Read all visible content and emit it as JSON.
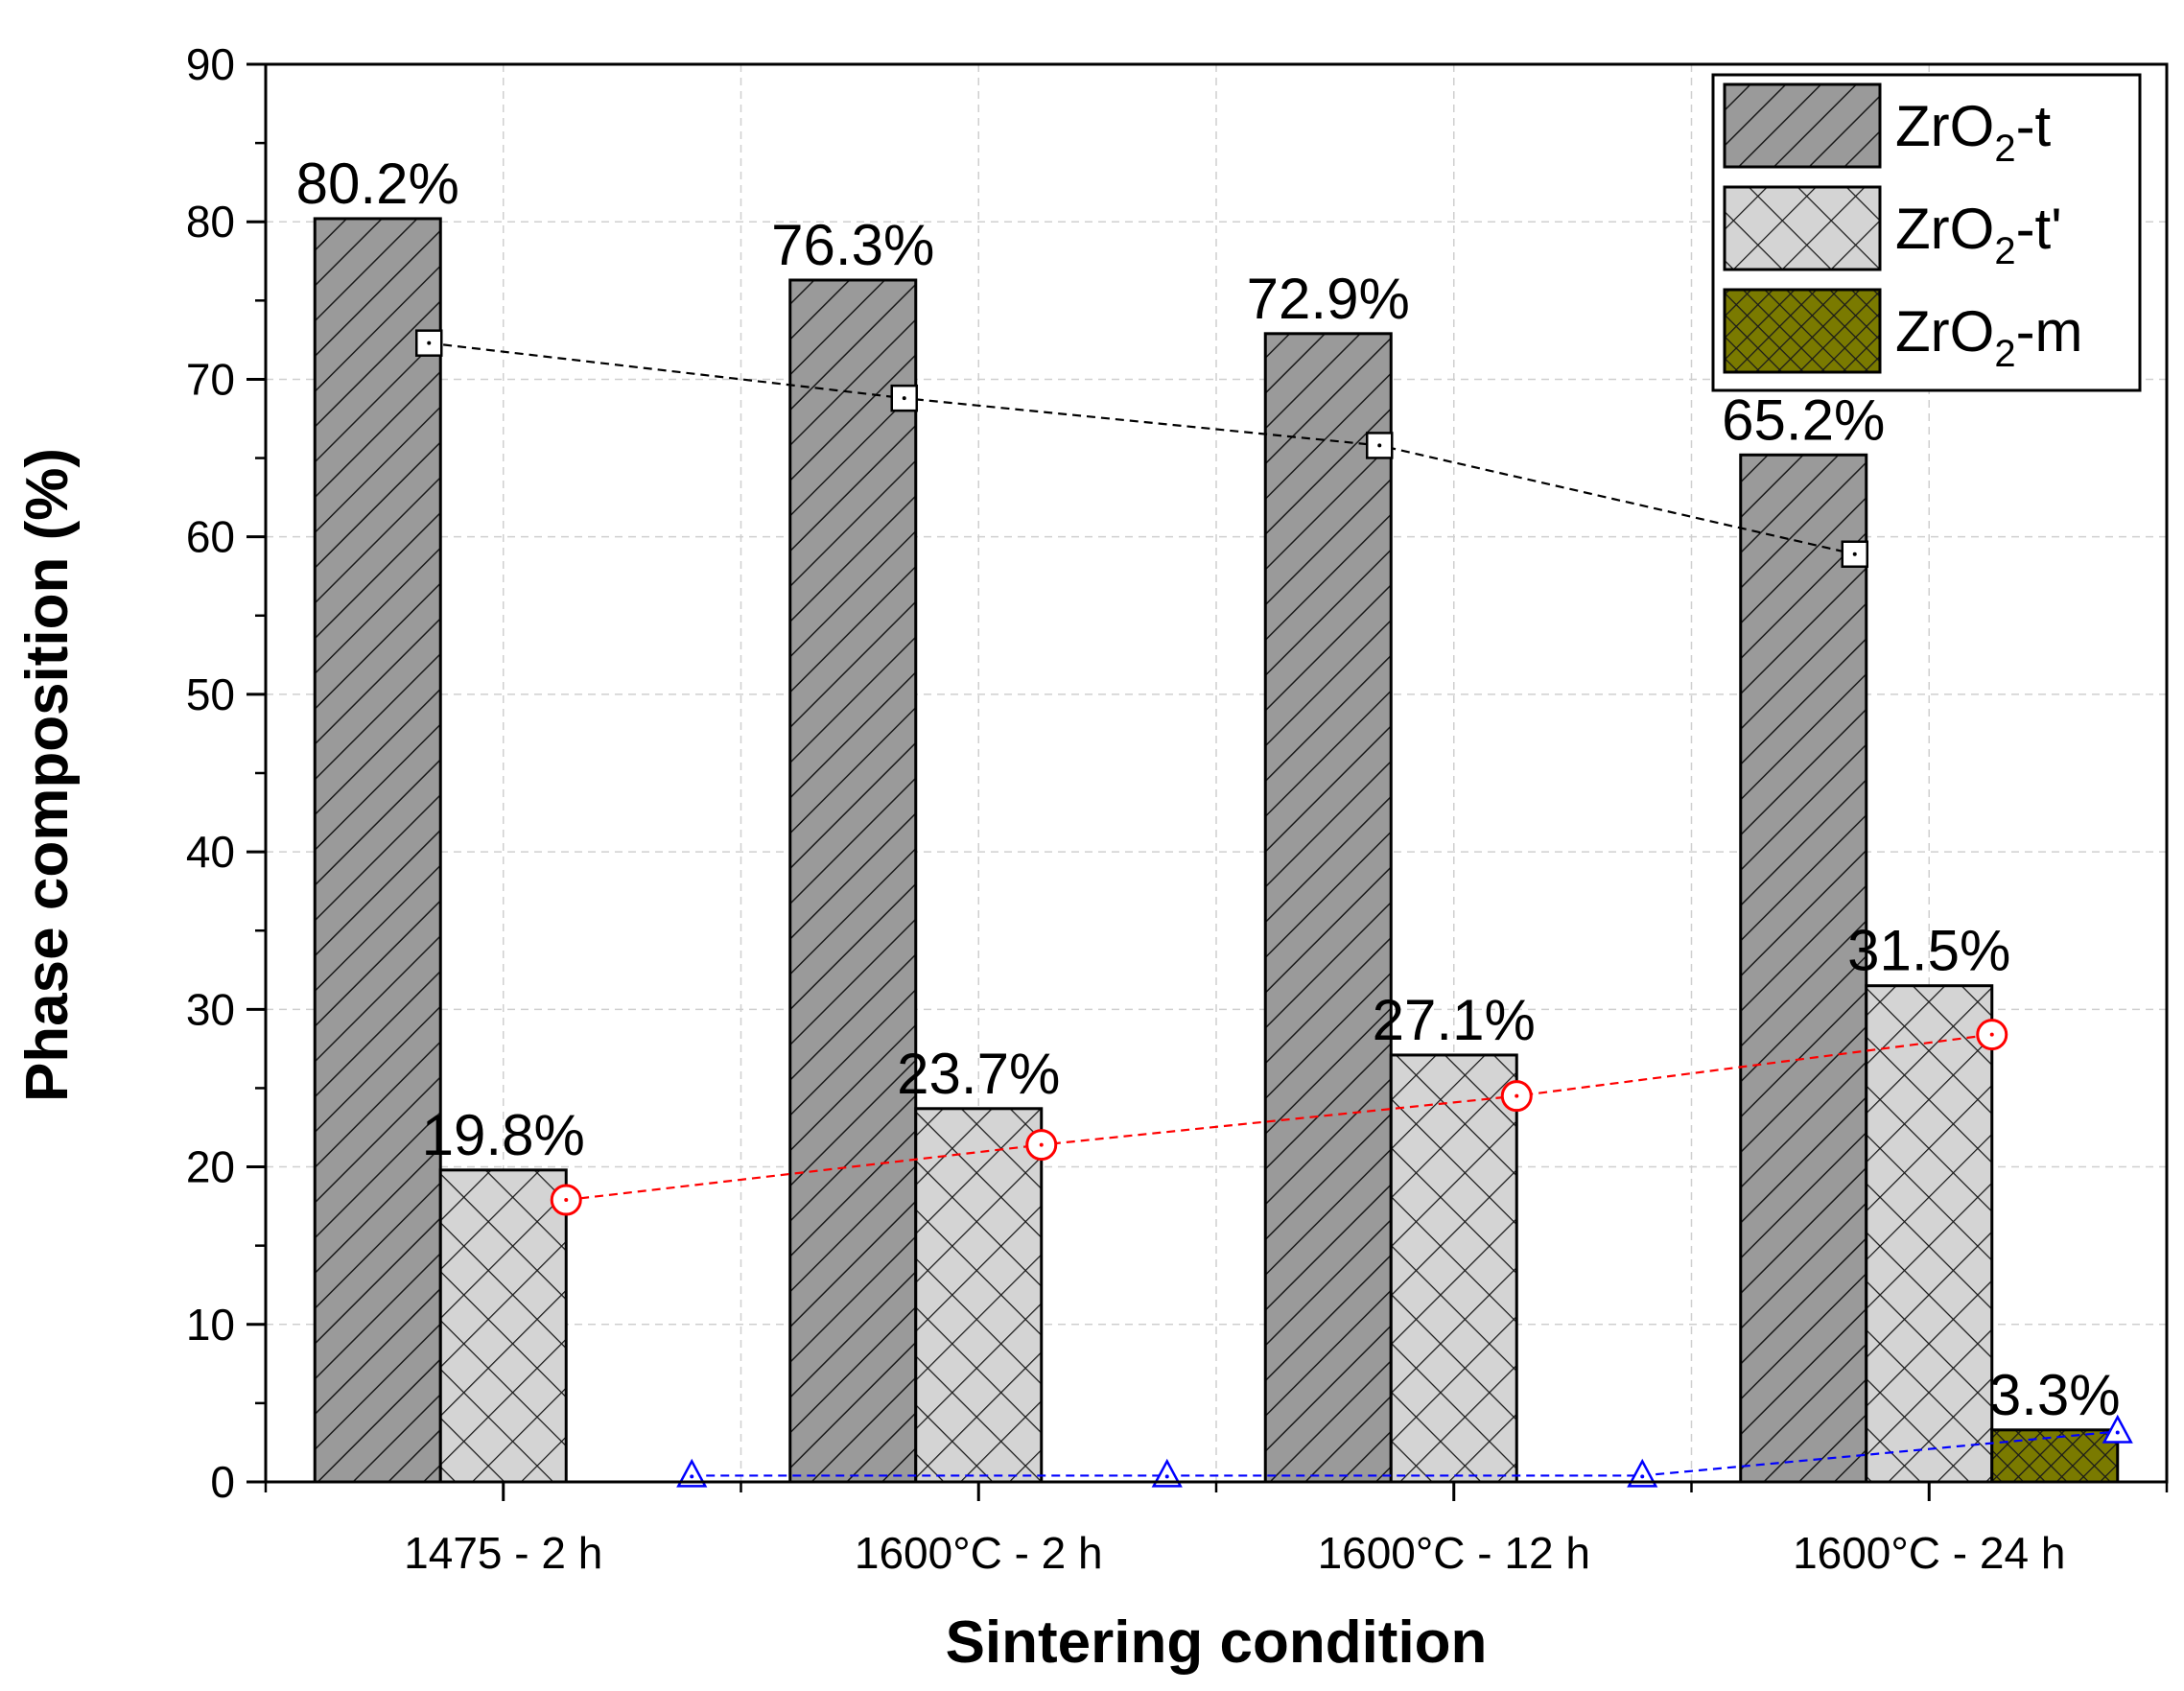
{
  "chart_data": {
    "type": "bar",
    "title": "",
    "xlabel": "Sintering condition",
    "ylabel": "Phase composition (%)",
    "ylim": [
      0,
      90
    ],
    "yticks": [
      0,
      10,
      20,
      30,
      40,
      50,
      60,
      70,
      80,
      90
    ],
    "grid": true,
    "legend_position": "top-right",
    "categories": [
      "1475 - 2 h",
      "1600°C - 2 h",
      "1600°C - 12 h",
      "1600°C - 24 h"
    ],
    "series": [
      {
        "name": "ZrO2-t",
        "legend_base": "ZrO",
        "legend_sub": "2",
        "legend_suffix": "-t",
        "pattern": "diagonal",
        "fill": "#9a9a9a",
        "values": [
          80.2,
          76.3,
          72.9,
          65.2
        ],
        "labels": [
          "80.2%",
          "76.3%",
          "72.9%",
          "65.2%"
        ]
      },
      {
        "name": "ZrO2-t'",
        "legend_base": "ZrO",
        "legend_sub": "2",
        "legend_suffix": "-t'",
        "pattern": "crosshatch",
        "fill": "#d4d4d4",
        "values": [
          19.8,
          23.7,
          27.1,
          31.5
        ],
        "labels": [
          "19.8%",
          "23.7%",
          "27.1%",
          "31.5%"
        ]
      },
      {
        "name": "ZrO2-m",
        "legend_base": "ZrO",
        "legend_sub": "2",
        "legend_suffix": "-m",
        "pattern": "crosshatch",
        "fill": "#7a7a00",
        "values": [
          0,
          0,
          0,
          3.3
        ],
        "labels": [
          "",
          "",
          "",
          "3.3%"
        ]
      }
    ],
    "trend_lines": [
      {
        "series": "ZrO2-t",
        "color": "#000000",
        "marker": "square",
        "values": [
          72.3,
          68.8,
          65.8,
          58.9
        ]
      },
      {
        "series": "ZrO2-t'",
        "color": "#ff0000",
        "marker": "circle",
        "values": [
          17.9,
          21.4,
          24.5,
          28.4
        ]
      },
      {
        "series": "ZrO2-m",
        "color": "#0000ff",
        "marker": "triangle",
        "values": [
          0.4,
          0.4,
          0.4,
          3.2
        ]
      }
    ]
  }
}
